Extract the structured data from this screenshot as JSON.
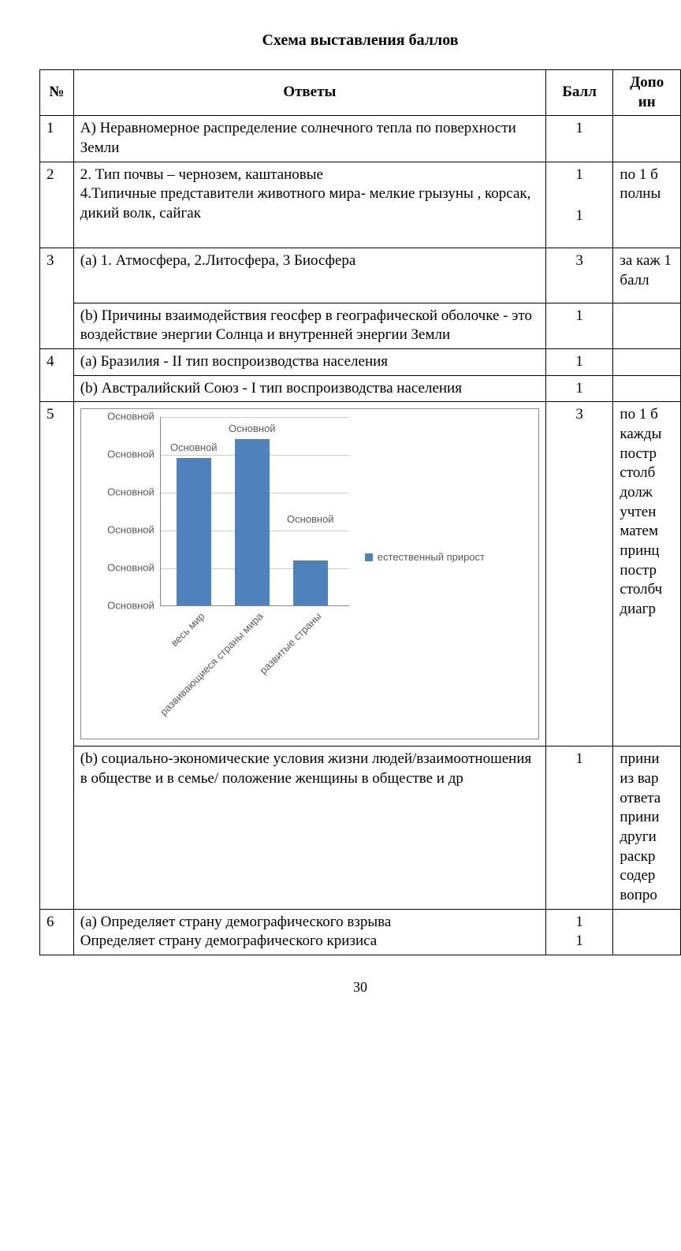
{
  "title": "Схема выставления баллов",
  "page_number": "30",
  "headers": {
    "num": "№",
    "answers": "Ответы",
    "ball": "Балл",
    "extra": "Допо ин"
  },
  "rows": {
    "r1": {
      "num": "1",
      "ans": "А) Неравномерное распределение солнечного тепла по поверхности Земли",
      "ball": "1",
      "extra": ""
    },
    "r2": {
      "num": "2",
      "ans": "2. Тип почвы – чернозем, каштановые\n4.Типичные представители  животного мира- мелкие грызуны , корсак, дикий волк, сайгак",
      "ball1": "1",
      "ball2": "1",
      "extra": "по 1 б полны"
    },
    "r3a": {
      "num": "3",
      "ans": "(a) 1. Атмосфера, 2.Литосфера, 3 Биосфера",
      "ball": "3",
      "extra": "за каж 1 балл"
    },
    "r3b": {
      "ans": "(b) Причины взаимодействия геосфер в географической оболочке - это воздействие энергии Солнца и внутренней энергии Земли",
      "ball": "1",
      "extra": ""
    },
    "r4a": {
      "num": "4",
      "ans": "(a) Бразилия - II тип воспроизводства населения",
      "ball": "1",
      "extra": ""
    },
    "r4b": {
      "ans": "(b) Австралийский Союз - I тип воспроизводства населения",
      "ball": "1",
      "extra": ""
    },
    "r5a": {
      "num": "5",
      "ball": "3",
      "extra": "по 1 б кажды постр столб  долж учтен матем принц постр столбч диагр"
    },
    "r5b": {
      "ans": "(b) социально-экономические условия жизни людей/взаимоотношения в обществе и в семье/ положение женщины в обществе  и др",
      "ball": "1",
      "extra": "прини из вар ответа прини други раскр содер вопро"
    },
    "r6": {
      "num": "6",
      "ans": "(a) Определяет страну  демографического взрыва\nОпределяет страну  демографического кризиса",
      "ball1": "1",
      "ball2": "1",
      "extra": ""
    }
  },
  "chart": {
    "type": "bar",
    "bar_color": "#4f81bd",
    "grid_color": "#cccccc",
    "axis_color": "#888888",
    "background": "#ffffff",
    "y_ticks": 6,
    "y_tick_label": "Основной",
    "legend_label": "естественный прирост",
    "bars": [
      {
        "category": "весь мир",
        "value": 0.78,
        "data_label": "Основной",
        "label_y_offset": 0.78
      },
      {
        "category": "развивающиеся страны мира",
        "value": 0.88,
        "data_label": "Основной",
        "label_y_offset": 0.88
      },
      {
        "category": "развитые страны",
        "value": 0.24,
        "data_label": "Основной",
        "label_y_offset": 0.4
      }
    ]
  }
}
